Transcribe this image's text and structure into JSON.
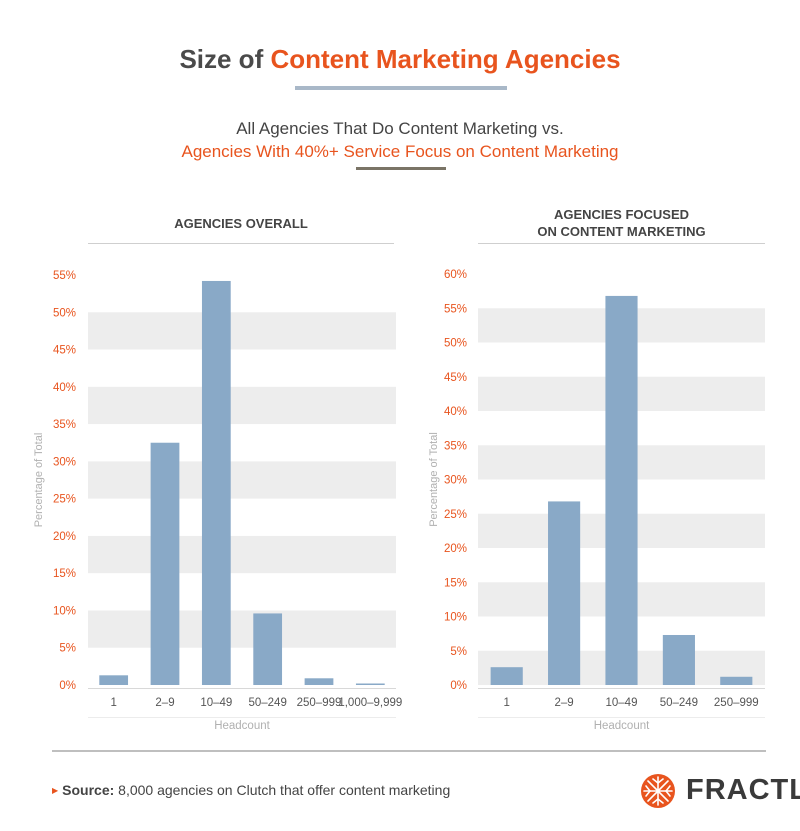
{
  "header": {
    "title_prefix": "Size of ",
    "title_accent": "Content Marketing Agencies",
    "subtitle_line1": "All Agencies That Do Content Marketing vs.",
    "subtitle_line2": "Agencies With 40%+ Service Focus on Content Marketing"
  },
  "colors": {
    "accent": "#e8541e",
    "bar": "#89a9c7",
    "band": "#ededed",
    "text": "#444444"
  },
  "footer": {
    "source_label": "Source:",
    "source_text": " 8,000 agencies on Clutch that offer content marketing",
    "brand": "FRACTL"
  },
  "chart_data": [
    {
      "type": "bar",
      "title": "AGENCIES OVERALL",
      "xlabel": "Headcount",
      "ylabel": "Percentage of Total",
      "categories": [
        "1",
        "2–9",
        "10–49",
        "50–249",
        "250–999",
        "1,000–9,999"
      ],
      "values": [
        1.3,
        32.5,
        54.2,
        9.6,
        0.9,
        0.2
      ],
      "ylim": [
        0,
        55
      ],
      "yticks": [
        "0%",
        "5%",
        "10%",
        "15%",
        "20%",
        "25%",
        "30%",
        "35%",
        "40%",
        "45%",
        "50%",
        "55%"
      ],
      "grid": "alternating bands"
    },
    {
      "type": "bar",
      "title": "AGENCIES FOCUSED ON CONTENT MARKETING",
      "title_lines": [
        "AGENCIES FOCUSED",
        "ON CONTENT MARKETING"
      ],
      "xlabel": "Headcount",
      "ylabel": "Percentage of Total",
      "categories": [
        "1",
        "2–9",
        "10–49",
        "50–249",
        "250–999"
      ],
      "values": [
        2.6,
        26.8,
        56.8,
        7.3,
        1.2
      ],
      "ylim": [
        0,
        60
      ],
      "yticks": [
        "0%",
        "5%",
        "10%",
        "15%",
        "20%",
        "25%",
        "30%",
        "35%",
        "40%",
        "45%",
        "50%",
        "55%",
        "60%"
      ],
      "grid": "alternating bands"
    }
  ]
}
